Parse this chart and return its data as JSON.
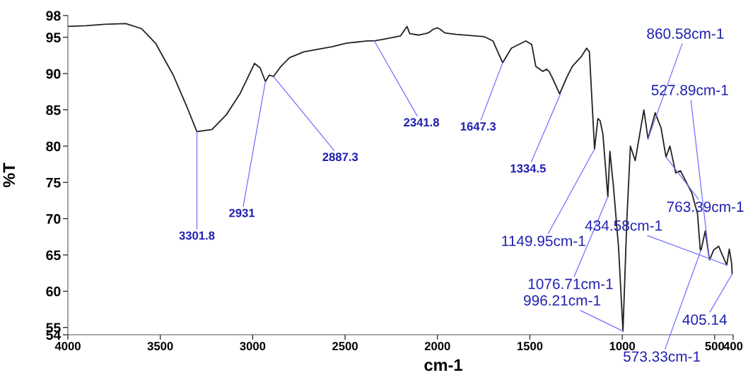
{
  "chart_data": {
    "type": "line",
    "xlabel": "cm-1",
    "ylabel": "%T",
    "xlim": [
      4000,
      400
    ],
    "xticks": [
      4000,
      3500,
      3000,
      2500,
      2000,
      1500,
      1000,
      500,
      400
    ],
    "ylim": [
      54,
      98
    ],
    "yticks": [
      54,
      55,
      60,
      65,
      70,
      75,
      80,
      85,
      90,
      95,
      98
    ],
    "grid": false,
    "legend": false,
    "marker": "none",
    "line_style": "solid",
    "series": [
      {
        "color": "#222222",
        "x": [
          4000,
          3900,
          3800,
          3687,
          3602,
          3526,
          3430,
          3354,
          3301.8,
          3220,
          3143,
          3067,
          2990,
          2960,
          2931,
          2910,
          2887.3,
          2850,
          2800,
          2723,
          2570,
          2493,
          2378,
          2341.8,
          2298,
          2200,
          2165,
          2150,
          2100,
          2050,
          2023,
          2000,
          1985,
          1960,
          1900,
          1748,
          1700,
          1647.3,
          1600,
          1522,
          1490,
          1468,
          1430,
          1410,
          1396,
          1380,
          1339,
          1300,
          1270,
          1220,
          1193,
          1178,
          1149.95,
          1132,
          1120,
          1105,
          1078,
          1067,
          1048,
          1020,
          996.21,
          975,
          956,
          930,
          883,
          860.58,
          822,
          790,
          763.39,
          742,
          711,
          685,
          623,
          593,
          578,
          573.33,
          551,
          527.89,
          505,
          478,
          467,
          434.58,
          421,
          409,
          405.14
        ],
        "values": [
          96.5,
          96.6,
          96.8,
          96.9,
          96.2,
          94.2,
          89.8,
          85.3,
          82.0,
          82.3,
          84.3,
          87.3,
          91.4,
          90.8,
          88.9,
          89.8,
          89.6,
          90.9,
          92.2,
          93.0,
          93.7,
          94.2,
          94.5,
          94.5,
          94.7,
          95.2,
          96.5,
          95.5,
          95.3,
          95.6,
          96.1,
          96.3,
          96.1,
          95.6,
          95.4,
          95.1,
          94.5,
          91.5,
          93.5,
          94.5,
          94.0,
          91.0,
          90.3,
          90.6,
          90.3,
          89.5,
          87.2,
          89.5,
          91.0,
          92.4,
          93.5,
          93.0,
          79.6,
          83.8,
          83.5,
          81.7,
          73.0,
          79.3,
          74.5,
          66.0,
          54.5,
          70.0,
          80.0,
          78.0,
          85.0,
          81.0,
          84.6,
          82.5,
          78.5,
          80.0,
          76.3,
          76.6,
          73.5,
          70.7,
          65.7,
          65.7,
          68.3,
          64.3,
          65.7,
          66.2,
          65.5,
          63.6,
          65.8,
          64.0,
          62.4
        ]
      }
    ],
    "annotations": [
      {
        "text": "3301.8",
        "x": 3301.8,
        "y": 82.0
      },
      {
        "text": "2931",
        "x": 2931,
        "y": 88.9
      },
      {
        "text": "2887.3",
        "x": 2887.3,
        "y": 89.6
      },
      {
        "text": "2341.8",
        "x": 2341.8,
        "y": 94.5
      },
      {
        "text": "1647.3",
        "x": 1647.3,
        "y": 91.5
      },
      {
        "text": "1334.5",
        "x": 1334.5,
        "y": 87.2
      },
      {
        "text": "1149.95cm-1",
        "x": 1149.95,
        "y": 79.6
      },
      {
        "text": "1076.71cm-1",
        "x": 1078,
        "y": 73.0
      },
      {
        "text": "996.21cm-1",
        "x": 996.21,
        "y": 54.5
      },
      {
        "text": "573.33cm-1",
        "x": 573.33,
        "y": 65.7
      },
      {
        "text": "860.58cm-1",
        "x": 860.58,
        "y": 81.0
      },
      {
        "text": "763.39cm-1",
        "x": 763.39,
        "y": 78.5
      },
      {
        "text": "527.89cm-1",
        "x": 527.89,
        "y": 64.3
      },
      {
        "text": "434.58cm-1",
        "x": 434.58,
        "y": 63.6
      },
      {
        "text": "405.14",
        "x": 405.14,
        "y": 62.4
      }
    ]
  }
}
